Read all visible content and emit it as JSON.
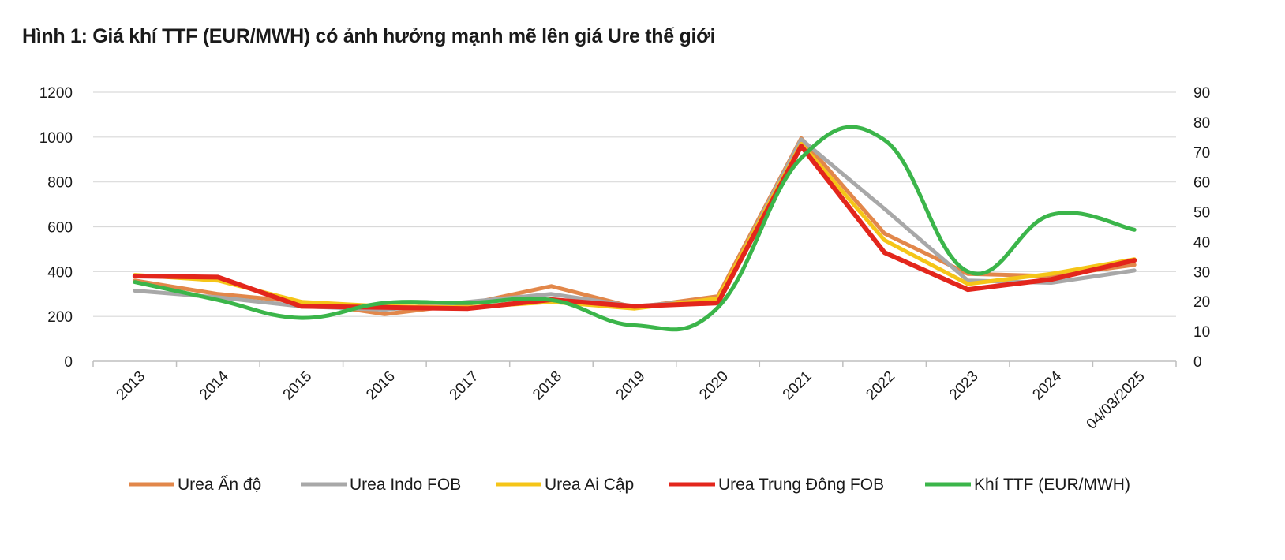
{
  "chart_data": {
    "type": "line",
    "title": "Hình 1: Giá khí TTF (EUR/MWH) có ảnh hưởng mạnh mẽ lên giá Ure thế giới",
    "categories": [
      "2013",
      "2014",
      "2015",
      "2016",
      "2017",
      "2018",
      "2019",
      "2020",
      "2021",
      "2022",
      "2023",
      "2024",
      "04/03/2025"
    ],
    "y_left": {
      "min": 0,
      "max": 1200,
      "ticks": [
        0,
        200,
        400,
        600,
        800,
        1000,
        1200
      ]
    },
    "y_right": {
      "min": 0,
      "max": 90,
      "ticks": [
        0,
        10,
        20,
        30,
        40,
        50,
        60,
        70,
        80,
        90
      ]
    },
    "grid": true,
    "legend_position": "bottom",
    "series": [
      {
        "name": "Urea Ấn độ",
        "color": "#e2874a",
        "axis": "left",
        "width": 5,
        "values": [
          360,
          300,
          265,
          210,
          255,
          335,
          240,
          290,
          995,
          570,
          390,
          380,
          430
        ]
      },
      {
        "name": "Urea Indo FOB",
        "color": "#a8a8a8",
        "axis": "left",
        "width": 5,
        "values": [
          315,
          285,
          245,
          230,
          265,
          300,
          245,
          275,
          990,
          680,
          360,
          350,
          405
        ]
      },
      {
        "name": "Urea Ai Cập",
        "color": "#f5c518",
        "axis": "left",
        "width": 5,
        "values": [
          385,
          360,
          265,
          245,
          240,
          265,
          235,
          280,
          970,
          540,
          345,
          390,
          455
        ]
      },
      {
        "name": "Urea Trung Đông FOB",
        "color": "#e3261c",
        "axis": "left",
        "width": 6,
        "values": [
          380,
          375,
          245,
          240,
          235,
          275,
          245,
          260,
          960,
          485,
          320,
          365,
          450
        ]
      },
      {
        "name": "Khí TTF (EUR/MWH)",
        "color": "#3bb54a",
        "axis": "right",
        "width": 5,
        "smooth": true,
        "values": [
          26.5,
          20.5,
          14.5,
          19.5,
          19.5,
          20.5,
          12,
          18,
          68,
          74,
          30,
          49,
          44
        ]
      }
    ]
  }
}
